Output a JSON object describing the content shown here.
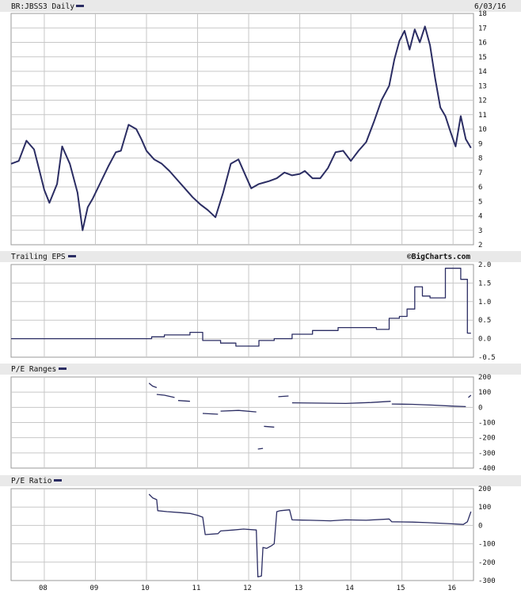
{
  "colors": {
    "line": "#2b2d63",
    "grid": "#c7c7c7",
    "header": "#e9e9e9",
    "frame": "#9a9a9a"
  },
  "header": {
    "symbol": "BR:JBSS3 Daily",
    "date": "6/03/16",
    "brand": "©BigCharts.com"
  },
  "chart_data": [
    {
      "type": "line",
      "title": "BR:JBSS3 Daily",
      "ylim": [
        2,
        18
      ],
      "yticks": [
        "2",
        "3",
        "4",
        "5",
        "6",
        "7",
        "8",
        "9",
        "10",
        "11",
        "12",
        "13",
        "14",
        "15",
        "16",
        "17",
        "18"
      ],
      "xlim": [
        2007.45,
        2016.5
      ],
      "xticks": [
        "08",
        "09",
        "10",
        "11",
        "12",
        "13",
        "14",
        "15",
        "16"
      ],
      "series": [
        {
          "x": [
            2007.45,
            2007.6,
            2007.75,
            2007.9,
            2008.0,
            2008.1,
            2008.2,
            2008.35,
            2008.45,
            2008.6,
            2008.75,
            2008.85,
            2008.95,
            2009.05,
            2009.2,
            2009.35,
            2009.5,
            2009.6,
            2009.75,
            2009.9,
            2010.0,
            2010.1,
            2010.25,
            2010.4,
            2010.55,
            2010.7,
            2010.85,
            2011.0,
            2011.15,
            2011.3,
            2011.45,
            2011.6,
            2011.75,
            2011.9,
            2012.05,
            2012.15,
            2012.3,
            2012.4,
            2012.5,
            2012.65,
            2012.8,
            2012.95,
            2013.1,
            2013.2,
            2013.35,
            2013.5,
            2013.65,
            2013.8,
            2013.95,
            2014.1,
            2014.25,
            2014.4,
            2014.55,
            2014.7,
            2014.85,
            2014.95,
            2015.05,
            2015.15,
            2015.25,
            2015.35,
            2015.45,
            2015.55,
            2015.65,
            2015.75,
            2015.85,
            2015.95,
            2016.05,
            2016.15,
            2016.25,
            2016.35,
            2016.45
          ],
          "y": [
            7.6,
            7.8,
            9.2,
            8.6,
            7.2,
            5.8,
            4.9,
            6.2,
            8.8,
            7.6,
            5.6,
            3.0,
            4.6,
            5.2,
            6.3,
            7.4,
            8.4,
            8.5,
            10.3,
            10.0,
            9.3,
            8.5,
            7.9,
            7.6,
            7.1,
            6.5,
            5.9,
            5.3,
            4.8,
            4.4,
            3.9,
            5.6,
            7.6,
            7.9,
            6.7,
            5.9,
            6.2,
            6.3,
            6.4,
            6.6,
            7.0,
            6.8,
            6.9,
            7.1,
            6.6,
            6.6,
            7.3,
            8.4,
            8.5,
            7.8,
            8.5,
            9.1,
            10.5,
            12.0,
            13.0,
            14.8,
            16.1,
            16.8,
            15.5,
            16.9,
            16.0,
            17.1,
            15.8,
            13.5,
            11.5,
            10.9,
            9.8,
            8.8,
            10.9,
            9.3,
            8.7
          ]
        }
      ]
    },
    {
      "type": "line",
      "title": "Trailing EPS",
      "ylim": [
        -0.5,
        2.0
      ],
      "yticks": [
        "2.0",
        "1.5",
        "1.0",
        "0.5",
        "0.0",
        "-0.5"
      ],
      "xlim": [
        2007.45,
        2016.5
      ],
      "series": [
        {
          "x": [
            2007.45,
            2010.2,
            2010.2,
            2010.45,
            2010.45,
            2010.95,
            2010.95,
            2011.2,
            2011.2,
            2011.55,
            2011.55,
            2011.85,
            2011.85,
            2012.05,
            2012.05,
            2012.3,
            2012.3,
            2012.6,
            2012.6,
            2012.95,
            2012.95,
            2013.35,
            2013.35,
            2013.85,
            2013.85,
            2014.6,
            2014.6,
            2014.85,
            2014.85,
            2015.05,
            2015.05,
            2015.2,
            2015.2,
            2015.35,
            2015.35,
            2015.5,
            2015.5,
            2015.65,
            2015.65,
            2015.95,
            2015.95,
            2016.25,
            2016.25,
            2016.38,
            2016.38,
            2016.45
          ],
          "y": [
            0.0,
            0.0,
            0.05,
            0.05,
            0.1,
            0.1,
            0.17,
            0.17,
            -0.05,
            -0.05,
            -0.12,
            -0.12,
            -0.2,
            -0.2,
            -0.2,
            -0.2,
            -0.05,
            -0.05,
            0.0,
            0.0,
            0.12,
            0.12,
            0.22,
            0.22,
            0.3,
            0.3,
            0.25,
            0.25,
            0.55,
            0.55,
            0.6,
            0.6,
            0.8,
            0.8,
            1.4,
            1.4,
            1.15,
            1.15,
            1.1,
            1.1,
            1.9,
            1.9,
            1.6,
            1.6,
            0.15,
            0.15
          ]
        }
      ]
    },
    {
      "type": "line",
      "title": "P/E Ranges",
      "ylim": [
        -400,
        200
      ],
      "yticks": [
        "200",
        "100",
        "0",
        "-100",
        "-200",
        "-300",
        "-400"
      ],
      "xlim": [
        2007.45,
        2016.5
      ],
      "series": [
        {
          "x": [
            2010.15,
            2010.22,
            2010.3
          ],
          "y": [
            160,
            140,
            130
          ]
        },
        {
          "x": [
            2010.3,
            2010.45,
            2010.65
          ],
          "y": [
            85,
            80,
            65
          ]
        },
        {
          "x": [
            2010.72,
            2010.95
          ],
          "y": [
            45,
            40
          ]
        },
        {
          "x": [
            2011.2,
            2011.5
          ],
          "y": [
            -40,
            -45
          ]
        },
        {
          "x": [
            2011.55,
            2011.9,
            2012.25
          ],
          "y": [
            -25,
            -20,
            -30
          ]
        },
        {
          "x": [
            2012.28,
            2012.38
          ],
          "y": [
            -275,
            -270
          ]
        },
        {
          "x": [
            2012.4,
            2012.6
          ],
          "y": [
            -125,
            -130
          ]
        },
        {
          "x": [
            2012.68,
            2012.88
          ],
          "y": [
            70,
            75
          ]
        },
        {
          "x": [
            2012.95,
            2013.5,
            2014.0,
            2014.5,
            2014.88
          ],
          "y": [
            30,
            28,
            26,
            32,
            40
          ]
        },
        {
          "x": [
            2014.9,
            2015.3,
            2015.7,
            2016.1,
            2016.35
          ],
          "y": [
            22,
            20,
            15,
            8,
            5
          ]
        },
        {
          "x": [
            2016.4,
            2016.45
          ],
          "y": [
            65,
            80
          ]
        }
      ]
    },
    {
      "type": "line",
      "title": "P/E Ratio",
      "ylim": [
        -300,
        200
      ],
      "yticks": [
        "200",
        "100",
        "0",
        "-100",
        "-200",
        "-300"
      ],
      "xlim": [
        2007.45,
        2016.5
      ],
      "series": [
        {
          "x": [
            2010.15,
            2010.22,
            2010.3,
            2010.32,
            2010.5,
            2010.75,
            2010.95,
            2011.1,
            2011.2,
            2011.25,
            2011.5,
            2011.55,
            2011.8,
            2012.0,
            2012.25,
            2012.28,
            2012.35,
            2012.38,
            2012.45,
            2012.55,
            2012.6,
            2012.65,
            2012.72,
            2012.9,
            2012.95,
            2013.3,
            2013.7,
            2014.0,
            2014.4,
            2014.85,
            2014.9,
            2015.3,
            2015.6,
            2016.0,
            2016.3,
            2016.38,
            2016.45
          ],
          "y": [
            170,
            150,
            140,
            80,
            75,
            70,
            65,
            55,
            45,
            -50,
            -45,
            -30,
            -25,
            -20,
            -25,
            -280,
            -275,
            -120,
            -125,
            -110,
            -100,
            75,
            80,
            85,
            30,
            28,
            25,
            30,
            28,
            35,
            20,
            18,
            15,
            10,
            5,
            20,
            75
          ]
        }
      ]
    }
  ]
}
